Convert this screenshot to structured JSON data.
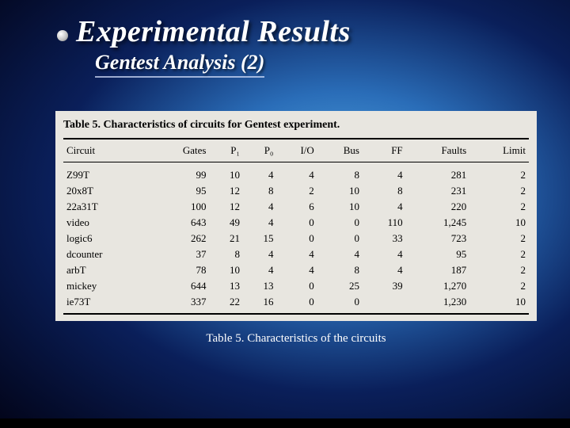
{
  "slide": {
    "title": "Experimental Results",
    "subtitle": "Gentest Analysis (2)",
    "caption": "Table 5. Characteristics of the circuits"
  },
  "table": {
    "title": "Table 5. Characteristics of circuits for Gentest experiment.",
    "columns": [
      "Circuit",
      "Gates",
      "P₁",
      "P₀",
      "I/O",
      "Bus",
      "FF",
      "Faults",
      "Limit"
    ],
    "rows": [
      [
        "Z99T",
        "99",
        "10",
        "4",
        "4",
        "8",
        "4",
        "281",
        "2"
      ],
      [
        "20x8T",
        "95",
        "12",
        "8",
        "2",
        "10",
        "8",
        "231",
        "2"
      ],
      [
        "22a31T",
        "100",
        "12",
        "4",
        "6",
        "10",
        "4",
        "220",
        "2"
      ],
      [
        "video",
        "643",
        "49",
        "4",
        "0",
        "0",
        "110",
        "1,245",
        "10"
      ],
      [
        "logic6",
        "262",
        "21",
        "15",
        "0",
        "0",
        "33",
        "723",
        "2"
      ],
      [
        "dcounter",
        "37",
        "8",
        "4",
        "4",
        "4",
        "4",
        "95",
        "2"
      ],
      [
        "arbT",
        "78",
        "10",
        "4",
        "4",
        "8",
        "4",
        "187",
        "2"
      ],
      [
        "mickey",
        "644",
        "13",
        "13",
        "0",
        "25",
        "39",
        "1,270",
        "2"
      ],
      [
        "ie73T",
        "337",
        "22",
        "16",
        "0",
        "0",
        "",
        "1,230",
        "10"
      ]
    ]
  },
  "style": {
    "title_color": "#ffffff",
    "background_gradient": [
      "#5ab0e8",
      "#2a6db8",
      "#0a1f5a",
      "#020418"
    ],
    "table_bg": "#e8e6e0",
    "border_color": "#000000",
    "title_fontsize": 38,
    "subtitle_fontsize": 26,
    "table_fontsize": 13
  }
}
